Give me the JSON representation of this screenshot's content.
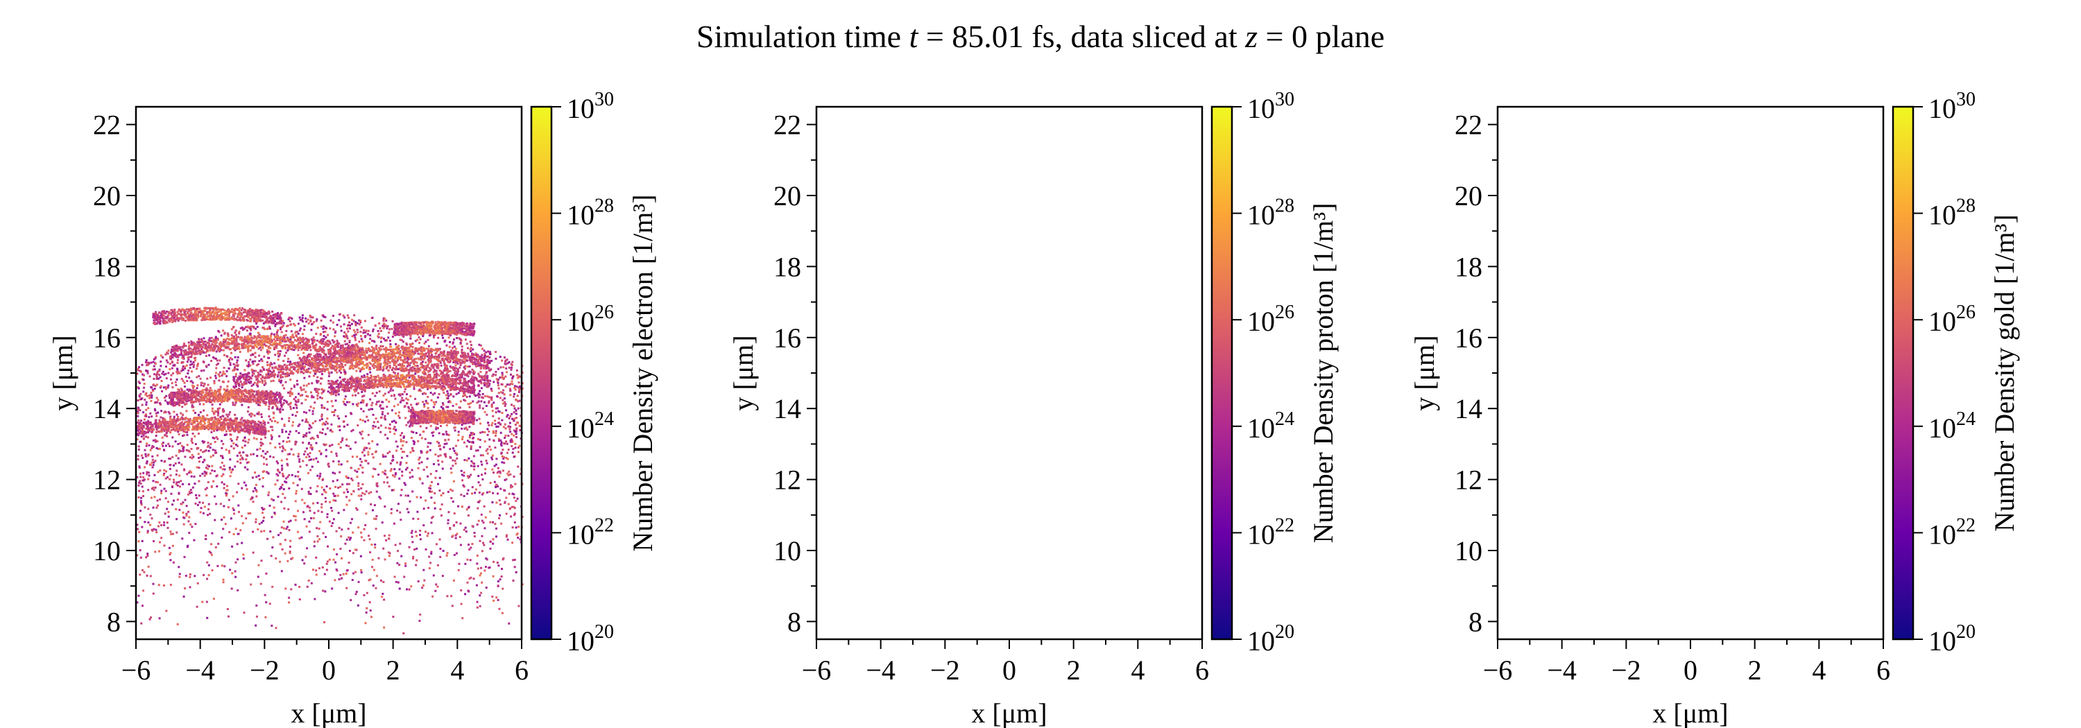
{
  "title": "Simulation time t = 85.01 fs, data sliced at z = 0 plane",
  "title_parts": {
    "pre": "Simulation time ",
    "t": "t",
    "mid": " = 85.01 fs, data sliced at ",
    "z": "z",
    "post": " = 0 plane"
  },
  "colormap": "plasma",
  "colormap_stops": [
    "#0d0887",
    "#6a00a8",
    "#b12a90",
    "#e16462",
    "#fca636",
    "#f0f921"
  ],
  "chart_data": [
    {
      "type": "heatmap",
      "species": "electron",
      "xlabel": "x [μm]",
      "ylabel": "y [μm]",
      "xlim": [
        -6,
        6
      ],
      "ylim": [
        7.5,
        22.5
      ],
      "xticks": [
        "−6",
        "−4",
        "−2",
        "0",
        "2",
        "4",
        "6"
      ],
      "yticks": [
        "8",
        "10",
        "12",
        "14",
        "16",
        "18",
        "20",
        "22"
      ],
      "colorbar_label": "Number Density electron [1/m³]",
      "colorbar_scale": "log",
      "colorbar_range": [
        1e+20,
        1e+30
      ],
      "colorbar_ticks": [
        "10^20",
        "10^22",
        "10^24",
        "10^26",
        "10^28",
        "10^30"
      ],
      "has_data": true,
      "particle_region_y": [
        7.5,
        17
      ],
      "dense_bands": [
        {
          "y_at_center": 16.7,
          "x_range": [
            -5.5,
            -1.5
          ]
        },
        {
          "y_at_center": 15.9,
          "x_range": [
            -5,
            1
          ]
        },
        {
          "y_at_center": 15.6,
          "x_range": [
            -1,
            5
          ]
        },
        {
          "y_at_center": 15.3,
          "x_range": [
            -3,
            5
          ]
        },
        {
          "y_at_center": 14.8,
          "x_range": [
            0,
            4.5
          ]
        },
        {
          "y_at_center": 14.4,
          "x_range": [
            -5,
            -1.5
          ]
        },
        {
          "y_at_center": 16.3,
          "x_range": [
            2,
            4.5
          ]
        },
        {
          "y_at_center": 13.8,
          "x_range": [
            2.5,
            4.5
          ]
        },
        {
          "y_at_center": 13.6,
          "x_range": [
            -6,
            -2
          ]
        }
      ]
    },
    {
      "type": "heatmap",
      "species": "proton",
      "xlabel": "x [μm]",
      "ylabel": "y [μm]",
      "xlim": [
        -6,
        6
      ],
      "ylim": [
        7.5,
        22.5
      ],
      "xticks": [
        "−6",
        "−4",
        "−2",
        "0",
        "2",
        "4",
        "6"
      ],
      "yticks": [
        "8",
        "10",
        "12",
        "14",
        "16",
        "18",
        "20",
        "22"
      ],
      "colorbar_label": "Number Density proton [1/m³]",
      "colorbar_scale": "log",
      "colorbar_range": [
        1e+20,
        1e+30
      ],
      "colorbar_ticks": [
        "10^20",
        "10^22",
        "10^24",
        "10^26",
        "10^28",
        "10^30"
      ],
      "has_data": false
    },
    {
      "type": "heatmap",
      "species": "gold",
      "xlabel": "x [μm]",
      "ylabel": "y [μm]",
      "xlim": [
        -6,
        6
      ],
      "ylim": [
        7.5,
        22.5
      ],
      "xticks": [
        "−6",
        "−4",
        "−2",
        "0",
        "2",
        "4",
        "6"
      ],
      "yticks": [
        "8",
        "10",
        "12",
        "14",
        "16",
        "18",
        "20",
        "22"
      ],
      "colorbar_label": "Number Density gold [1/m³]",
      "colorbar_scale": "log",
      "colorbar_range": [
        1e+20,
        1e+30
      ],
      "colorbar_ticks": [
        "10^20",
        "10^22",
        "10^24",
        "10^26",
        "10^28",
        "10^30"
      ],
      "has_data": false
    }
  ]
}
